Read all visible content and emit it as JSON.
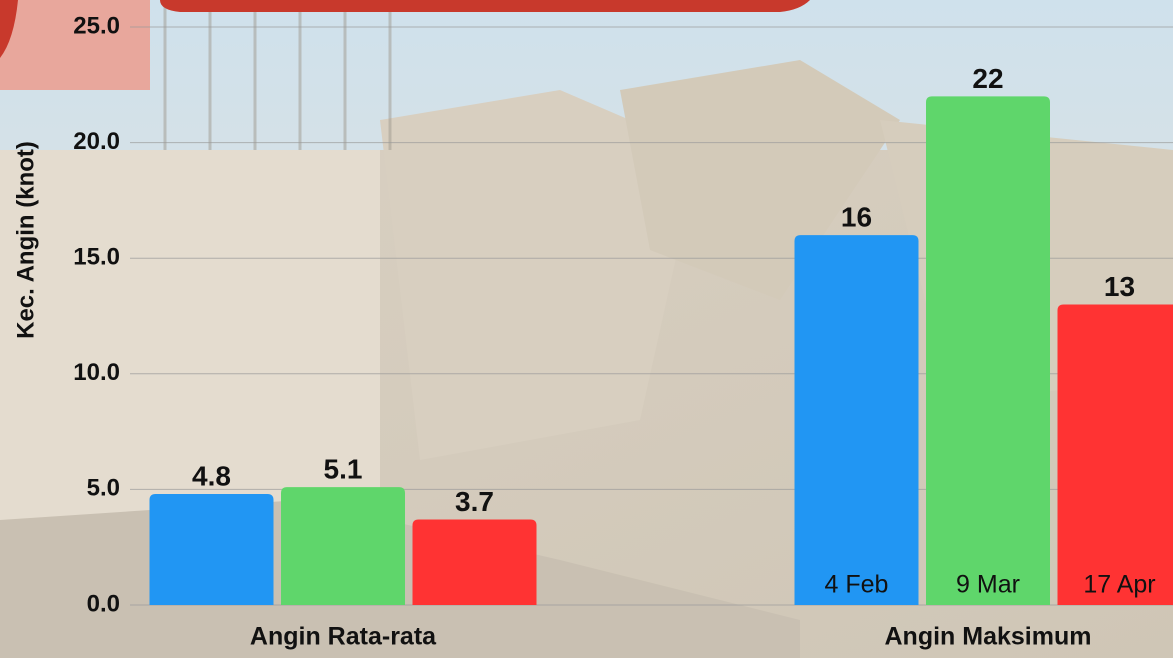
{
  "chart_data": {
    "type": "bar",
    "y_label": "Kec. Angin (knot)",
    "categories": [
      "Angin Rata-rata",
      "Angin Maksimum"
    ],
    "series": [
      {
        "color": "#2196f3",
        "values": [
          4.8,
          16
        ],
        "inner_labels": [
          null,
          "4 Feb"
        ]
      },
      {
        "color": "#5fd66b",
        "values": [
          5.1,
          22
        ],
        "inner_labels": [
          null,
          "9 Mar"
        ]
      },
      {
        "color": "#ff3333",
        "values": [
          3.7,
          13
        ],
        "inner_labels": [
          null,
          "17 Apr"
        ]
      }
    ],
    "ylim": [
      0,
      25
    ],
    "yticks": [
      {
        "value": 0,
        "label": "0.0"
      },
      {
        "value": 5,
        "label": "5.0"
      },
      {
        "value": 10,
        "label": "10.0"
      },
      {
        "value": 15,
        "label": "15.0"
      },
      {
        "value": 20,
        "label": "20.0"
      },
      {
        "value": 25,
        "label": "25.0"
      }
    ],
    "grid": true
  }
}
